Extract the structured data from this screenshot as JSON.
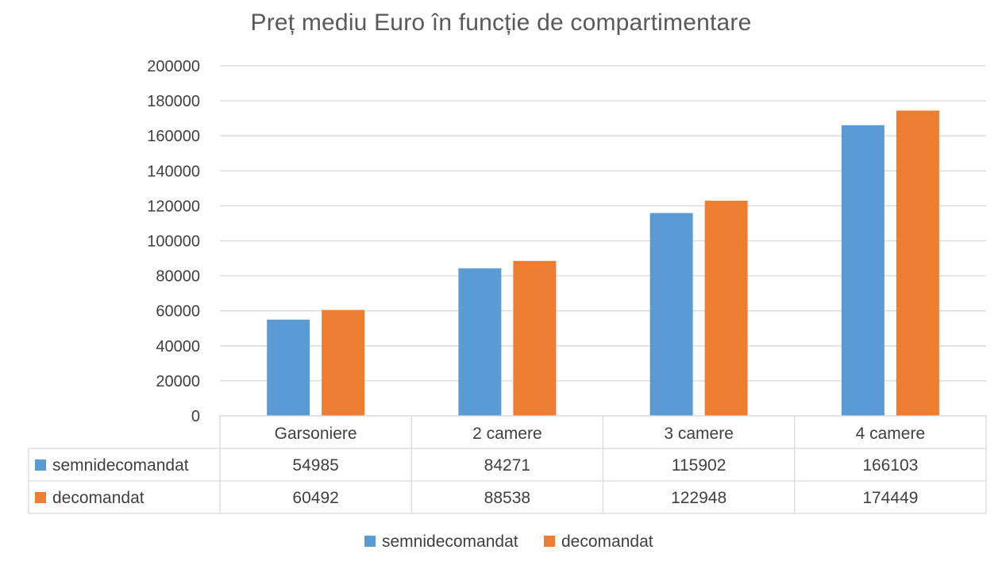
{
  "chart_data": {
    "type": "bar",
    "title": "Preț mediu Euro în funcție de compartimentare",
    "xlabel": "",
    "ylabel": "",
    "categories": [
      "Garsoniere",
      "2 camere",
      "3 camere",
      "4 camere"
    ],
    "series": [
      {
        "name": "semnidecomandat",
        "color": "#5B9BD5",
        "values": [
          54985,
          84271,
          115902,
          166103
        ]
      },
      {
        "name": "decomandat",
        "color": "#ED7D31",
        "values": [
          60492,
          88538,
          122948,
          174449
        ]
      }
    ],
    "ylim": [
      0,
      200000
    ],
    "yticks": [
      0,
      20000,
      40000,
      60000,
      80000,
      100000,
      120000,
      140000,
      160000,
      180000,
      200000
    ],
    "grid": true,
    "data_table": true,
    "legend": "bottom"
  }
}
